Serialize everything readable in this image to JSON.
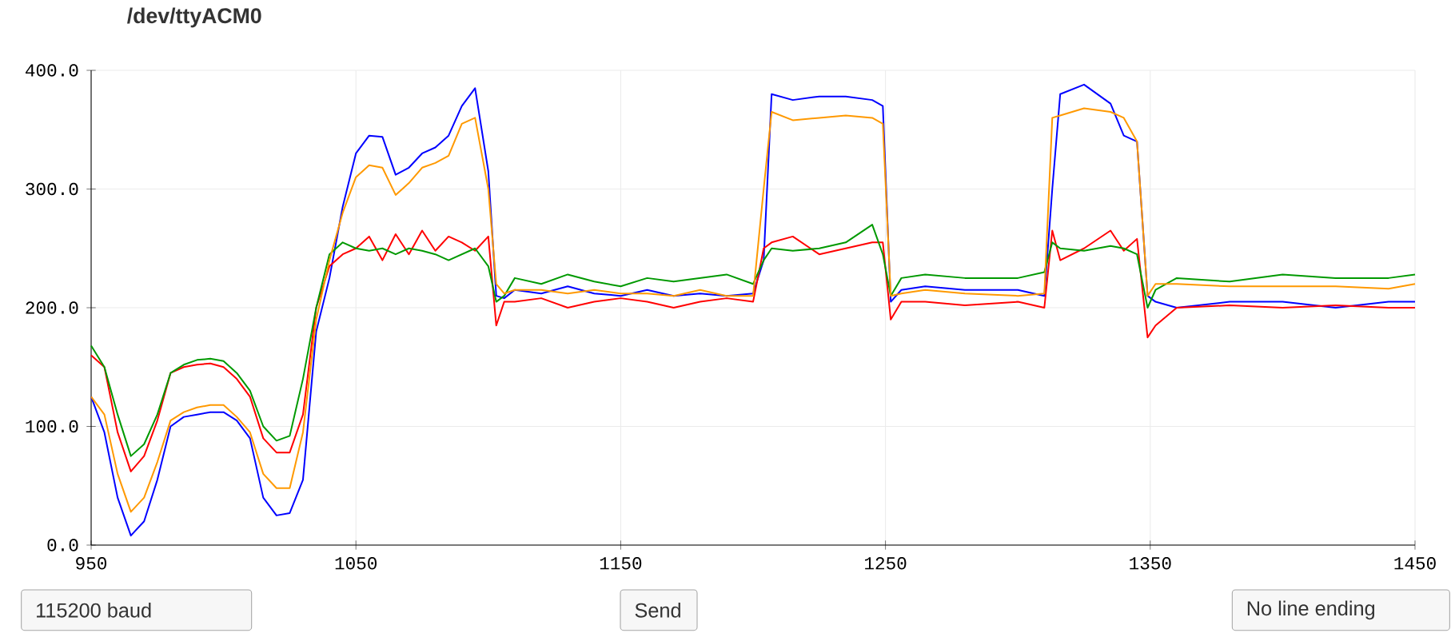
{
  "chart_data": {
    "type": "line",
    "title": "/dev/ttyACM0",
    "x": [
      950,
      955,
      960,
      965,
      970,
      975,
      980,
      985,
      990,
      995,
      1000,
      1005,
      1010,
      1015,
      1020,
      1025,
      1030,
      1035,
      1040,
      1045,
      1050,
      1055,
      1060,
      1065,
      1070,
      1075,
      1080,
      1085,
      1090,
      1095,
      1100,
      1103,
      1106,
      1110,
      1120,
      1130,
      1140,
      1150,
      1160,
      1170,
      1180,
      1190,
      1200,
      1204,
      1207,
      1215,
      1225,
      1235,
      1245,
      1249,
      1252,
      1256,
      1265,
      1280,
      1300,
      1310,
      1313,
      1316,
      1325,
      1335,
      1340,
      1345,
      1349,
      1352,
      1360,
      1380,
      1400,
      1420,
      1440,
      1450
    ],
    "series": [
      {
        "color": "#0000ff",
        "values": [
          125,
          95,
          40,
          8,
          20,
          55,
          100,
          108,
          110,
          112,
          112,
          105,
          90,
          40,
          25,
          27,
          55,
          180,
          225,
          285,
          330,
          345,
          344,
          312,
          318,
          330,
          335,
          345,
          370,
          385,
          315,
          210,
          208,
          215,
          212,
          218,
          212,
          210,
          215,
          210,
          212,
          210,
          212,
          240,
          380,
          375,
          378,
          378,
          375,
          370,
          205,
          215,
          218,
          215,
          215,
          210,
          300,
          380,
          388,
          372,
          345,
          340,
          210,
          205,
          200,
          205,
          205,
          200,
          205,
          205
        ]
      },
      {
        "color": "#ff0000",
        "values": [
          160,
          150,
          95,
          62,
          75,
          105,
          145,
          150,
          152,
          153,
          150,
          140,
          125,
          90,
          78,
          78,
          110,
          200,
          235,
          245,
          250,
          260,
          240,
          262,
          245,
          265,
          248,
          260,
          255,
          248,
          260,
          185,
          205,
          205,
          208,
          200,
          205,
          208,
          205,
          200,
          205,
          208,
          205,
          250,
          255,
          260,
          245,
          250,
          255,
          255,
          190,
          205,
          205,
          202,
          205,
          200,
          265,
          240,
          250,
          265,
          248,
          258,
          175,
          185,
          200,
          202,
          200,
          202,
          200,
          200
        ]
      },
      {
        "color": "#009900",
        "values": [
          168,
          150,
          110,
          75,
          85,
          110,
          145,
          152,
          156,
          157,
          155,
          145,
          130,
          100,
          88,
          92,
          140,
          200,
          245,
          255,
          250,
          248,
          250,
          245,
          250,
          248,
          245,
          240,
          245,
          250,
          235,
          205,
          210,
          225,
          220,
          228,
          222,
          218,
          225,
          222,
          225,
          228,
          220,
          240,
          250,
          248,
          250,
          255,
          270,
          245,
          210,
          225,
          228,
          225,
          225,
          230,
          255,
          250,
          248,
          252,
          250,
          245,
          200,
          215,
          225,
          222,
          228,
          225,
          225,
          228
        ]
      },
      {
        "color": "#ff9900",
        "values": [
          125,
          110,
          60,
          28,
          40,
          70,
          105,
          112,
          116,
          118,
          118,
          108,
          95,
          60,
          48,
          48,
          95,
          190,
          240,
          280,
          310,
          320,
          318,
          295,
          305,
          318,
          322,
          328,
          355,
          360,
          300,
          220,
          212,
          215,
          215,
          212,
          215,
          212,
          212,
          210,
          215,
          210,
          210,
          300,
          365,
          358,
          360,
          362,
          360,
          355,
          210,
          212,
          215,
          212,
          210,
          212,
          360,
          362,
          368,
          365,
          360,
          340,
          210,
          220,
          220,
          218,
          218,
          218,
          216,
          220
        ]
      }
    ],
    "xlim": [
      950,
      1450
    ],
    "xticks": [
      950,
      1050,
      1150,
      1250,
      1350,
      1450
    ],
    "ylim": [
      0,
      400
    ],
    "yticks": [
      {
        "value": 0,
        "label": "0.0"
      },
      {
        "value": 100,
        "label": "100.0"
      },
      {
        "value": 200,
        "label": "200.0"
      },
      {
        "value": 300,
        "label": "300.0"
      },
      {
        "value": 400,
        "label": "400.0"
      }
    ],
    "grid": true,
    "annotations": [
      "115200 baud",
      "Send",
      "No line ending"
    ]
  }
}
